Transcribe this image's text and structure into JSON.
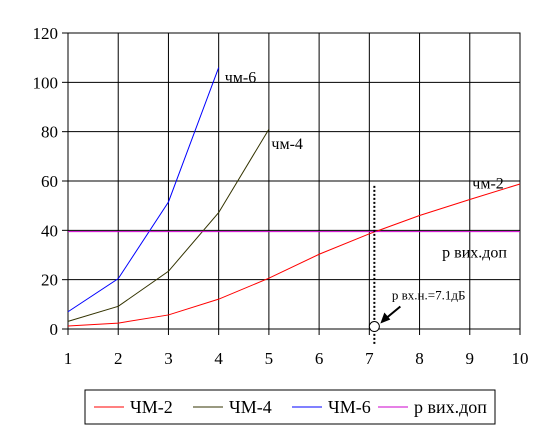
{
  "chart_data": {
    "type": "line",
    "x_ticks": [
      1,
      2,
      3,
      4,
      5,
      6,
      7,
      8,
      9,
      10
    ],
    "y_ticks": [
      0,
      20,
      40,
      60,
      80,
      100,
      120
    ],
    "xlim": [
      1,
      10
    ],
    "ylim": [
      0,
      120
    ],
    "grid": true,
    "legend_position": "bottom",
    "series": [
      {
        "name": "ЧМ-2",
        "color": "#ff0000",
        "x": [
          1,
          2,
          3,
          4,
          5,
          6,
          7,
          8,
          9,
          10
        ],
        "y": [
          1.2,
          2.4,
          5.7,
          12.1,
          20.6,
          30.3,
          38.6,
          46.0,
          52.5,
          58.8
        ]
      },
      {
        "name": "ЧМ-4",
        "color": "#333300",
        "x": [
          1,
          2,
          3,
          4,
          5
        ],
        "y": [
          3.1,
          9.2,
          23.4,
          47.2,
          81.0
        ]
      },
      {
        "name": "ЧМ-6",
        "color": "#0000ff",
        "x": [
          1,
          2,
          3,
          4
        ],
        "y": [
          7.0,
          20.4,
          51.5,
          106.0
        ]
      },
      {
        "name": "р вих.доп",
        "color": "#cc00cc",
        "x": [
          1,
          10
        ],
        "y": [
          39.5,
          39.5
        ]
      }
    ],
    "annotations": [
      {
        "id": "label_cm6",
        "text": "чм-6",
        "x": 4.12,
        "y": 100
      },
      {
        "id": "label_cm4",
        "text": "чм-4",
        "x": 5.05,
        "y": 73
      },
      {
        "id": "label_cm2",
        "text": "чм-2",
        "x": 9.05,
        "y": 57
      },
      {
        "id": "label_pvyx",
        "text": "р вих.доп",
        "x": 8.45,
        "y": 29
      },
      {
        "id": "label_pvxn",
        "text": "р вх.н.=7.1дБ",
        "x": 7.45,
        "y": 12
      }
    ],
    "marker": {
      "x": 7.1,
      "y": 0.6
    },
    "vline_x": 7.1
  }
}
